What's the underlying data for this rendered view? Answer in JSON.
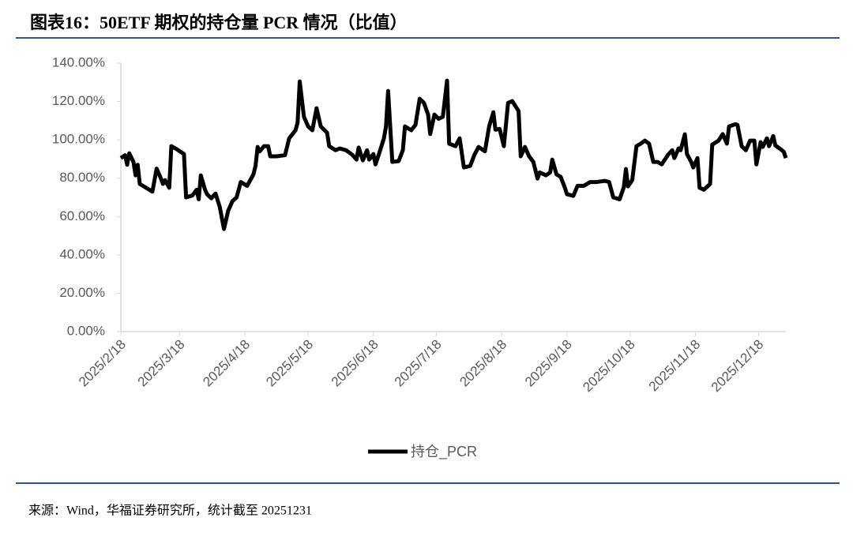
{
  "chart_data": {
    "type": "line",
    "title": "图表16：50ETF 期权的持仓量 PCR 情况（比值）",
    "source": "来源：Wind，华福证券研究所，统计截至 20251231",
    "legend": "bottom",
    "ylim": [
      0,
      140
    ],
    "yticks": [
      {
        "value": 0,
        "label": "0.00%"
      },
      {
        "value": 20,
        "label": "20.00%"
      },
      {
        "value": 40,
        "label": "40.00%"
      },
      {
        "value": 60,
        "label": "60.00%"
      },
      {
        "value": 80,
        "label": "80.00%"
      },
      {
        "value": 100,
        "label": "100.00%"
      },
      {
        "value": 120,
        "label": "120.00%"
      },
      {
        "value": 140,
        "label": "140.00%"
      }
    ],
    "xlim": [
      "2025/2/18",
      "2025/12/31"
    ],
    "xticks": [
      "2025/2/18",
      "2025/3/18",
      "2025/4/18",
      "2025/5/18",
      "2025/6/18",
      "2025/7/18",
      "2025/8/18",
      "2025/9/18",
      "2025/10/18",
      "2025/11/18",
      "2025/12/18"
    ],
    "x": [
      "2025/2/18",
      "2025/2/20",
      "2025/2/21",
      "2025/2/22",
      "2025/2/24",
      "2025/2/25",
      "2025/2/26",
      "2025/2/27",
      "2025/3/2",
      "2025/3/5",
      "2025/3/7",
      "2025/3/9",
      "2025/3/10",
      "2025/3/11",
      "2025/3/13",
      "2025/3/14",
      "2025/3/16",
      "2025/3/20",
      "2025/3/21",
      "2025/3/24",
      "2025/3/26",
      "2025/3/27",
      "2025/3/28",
      "2025/3/30",
      "2025/3/31",
      "2025/4/2",
      "2025/4/4",
      "2025/4/6",
      "2025/4/8",
      "2025/4/10",
      "2025/4/12",
      "2025/4/14",
      "2025/4/16",
      "2025/4/19",
      "2025/4/22",
      "2025/4/23",
      "2025/4/24",
      "2025/4/25",
      "2025/4/27",
      "2025/4/29",
      "2025/4/30",
      "2025/5/3",
      "2025/5/7",
      "2025/5/9",
      "2025/5/12",
      "2025/5/13",
      "2025/5/14",
      "2025/5/16",
      "2025/5/18",
      "2025/5/20",
      "2025/5/22",
      "2025/5/24",
      "2025/5/27",
      "2025/5/28",
      "2025/5/31",
      "2025/6/2",
      "2025/6/5",
      "2025/6/8",
      "2025/6/10",
      "2025/6/11",
      "2025/6/13",
      "2025/6/15",
      "2025/6/16",
      "2025/6/18",
      "2025/6/19",
      "2025/6/21",
      "2025/6/23",
      "2025/6/24",
      "2025/6/25",
      "2025/6/27",
      "2025/6/30",
      "2025/7/2",
      "2025/7/3",
      "2025/7/6",
      "2025/7/8",
      "2025/7/10",
      "2025/7/12",
      "2025/7/14",
      "2025/7/15",
      "2025/7/17",
      "2025/7/19",
      "2025/7/21",
      "2025/7/23",
      "2025/7/24",
      "2025/7/27",
      "2025/7/29",
      "2025/7/31",
      "2025/8/3",
      "2025/8/5",
      "2025/8/7",
      "2025/8/10",
      "2025/8/12",
      "2025/8/14",
      "2025/8/15",
      "2025/8/17",
      "2025/8/19",
      "2025/8/21",
      "2025/8/23",
      "2025/8/26",
      "2025/8/27",
      "2025/8/29",
      "2025/8/31",
      "2025/9/2",
      "2025/9/4",
      "2025/9/5",
      "2025/9/8",
      "2025/9/10",
      "2025/9/11",
      "2025/9/13",
      "2025/9/15",
      "2025/9/17",
      "2025/9/18",
      "2025/9/21",
      "2025/9/23",
      "2025/9/26",
      "2025/9/29",
      "2025/10/2",
      "2025/10/6",
      "2025/10/8",
      "2025/10/10",
      "2025/10/13",
      "2025/10/15",
      "2025/10/16",
      "2025/10/17",
      "2025/10/19",
      "2025/10/21",
      "2025/10/23",
      "2025/10/25",
      "2025/10/27",
      "2025/10/29",
      "2025/10/31",
      "2025/11/2",
      "2025/11/5",
      "2025/11/7",
      "2025/11/8",
      "2025/11/10",
      "2025/11/11",
      "2025/11/13",
      "2025/11/14",
      "2025/11/16",
      "2025/11/17",
      "2025/11/19",
      "2025/11/20",
      "2025/11/22",
      "2025/11/25",
      "2025/11/26",
      "2025/11/29",
      "2025/12/1",
      "2025/12/3",
      "2025/12/4",
      "2025/12/7",
      "2025/12/8",
      "2025/12/10",
      "2025/12/12",
      "2025/12/14",
      "2025/12/16",
      "2025/12/17",
      "2025/12/19",
      "2025/12/20",
      "2025/12/22",
      "2025/12/23",
      "2025/12/25",
      "2025/12/26",
      "2025/12/28",
      "2025/12/30",
      "2025/12/31"
    ],
    "series": [
      {
        "name": "持仓_PCR",
        "color": "#000000",
        "values": [
          90.5,
          92,
          87,
          93,
          88.5,
          81.5,
          87,
          77,
          75,
          73,
          85,
          80,
          77,
          79,
          75,
          96.7,
          95.5,
          92.6,
          70,
          71,
          74,
          69,
          81.5,
          74,
          71.6,
          69.5,
          72,
          65,
          53.5,
          63,
          68,
          70,
          78,
          76,
          82,
          86.4,
          96.3,
          94,
          96.7,
          96.7,
          91.4,
          91.4,
          92,
          100.8,
          105,
          109,
          130.5,
          112,
          107,
          105,
          116.5,
          107,
          103.7,
          96.7,
          94.6,
          95.5,
          94.6,
          92.2,
          89.7,
          96,
          89.3,
          94.6,
          89.7,
          92.6,
          87.2,
          93.8,
          100.8,
          107,
          125.5,
          88.5,
          88.9,
          94.6,
          107,
          105,
          107.8,
          121.4,
          119.3,
          113.2,
          103,
          113.2,
          111,
          112,
          130.9,
          98,
          96.7,
          100.8,
          85.6,
          86.4,
          92.2,
          96.3,
          94,
          107,
          114.4,
          105.3,
          105.7,
          96.7,
          119.3,
          120.2,
          115,
          91.4,
          96.3,
          91.4,
          88.5,
          79.8,
          83,
          81.5,
          83,
          89.7,
          82,
          80.7,
          75,
          71.6,
          70.8,
          76,
          76,
          78,
          78,
          78.6,
          78,
          70,
          69,
          75.3,
          84.8,
          75.7,
          79,
          96.7,
          98,
          99.6,
          98,
          88.5,
          88.5,
          87.2,
          92.2,
          94.6,
          90.5,
          95.5,
          94.6,
          102.9,
          92.6,
          88.5,
          85.6,
          90.5,
          75,
          74,
          77,
          97.5,
          99.6,
          103,
          98,
          107,
          108.2,
          107.8,
          96.7,
          94.6,
          99.6,
          99.6,
          87.2,
          98.8,
          96.3,
          100.8,
          96.7,
          102,
          97.1,
          95.5,
          93.8,
          90.5
        ]
      }
    ]
  }
}
